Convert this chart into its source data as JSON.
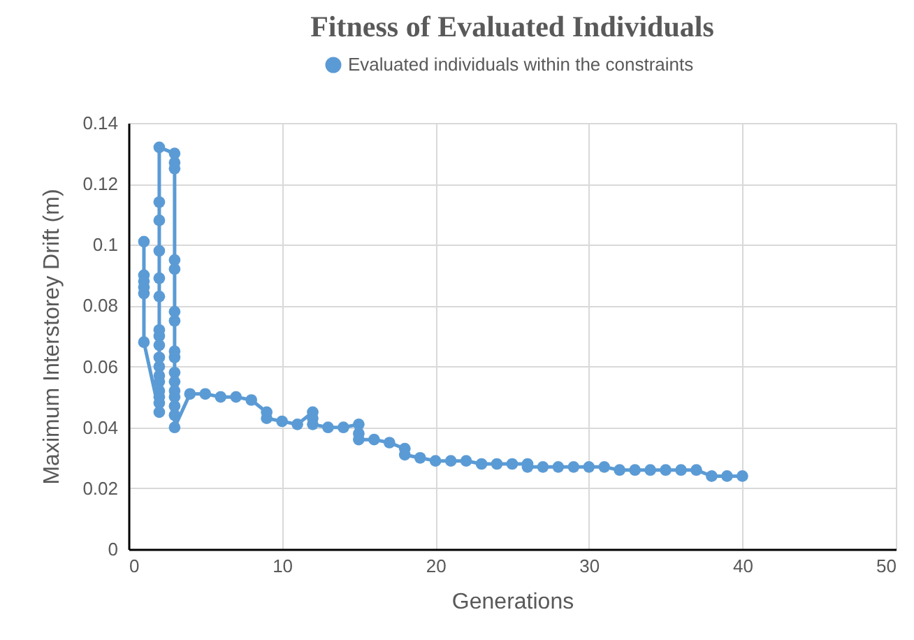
{
  "chart_data": {
    "type": "line",
    "title": "Fitness of Evaluated Individuals",
    "xlabel": "Generations",
    "ylabel": "Maximum Interstorey Drift (m)",
    "x": [
      1,
      1,
      1,
      1,
      1,
      1,
      2,
      2,
      2,
      2,
      2,
      2,
      2,
      2,
      2,
      2,
      2,
      2,
      2,
      2,
      2,
      2,
      2,
      3,
      3,
      3,
      3,
      3,
      3,
      3,
      3,
      3,
      3,
      3,
      3,
      3,
      3,
      3,
      3,
      4,
      5,
      6,
      7,
      8,
      9,
      9,
      10,
      11,
      12,
      12,
      12,
      13,
      14,
      15,
      15,
      15,
      16,
      17,
      18,
      18,
      19,
      20,
      21,
      22,
      23,
      24,
      25,
      26,
      26,
      27,
      28,
      29,
      30,
      31,
      32,
      33,
      34,
      35,
      36,
      37,
      38,
      39,
      40
    ],
    "series": [
      {
        "name": "Evaluated individuals within the constraints",
        "color": "#5b9bd5",
        "values": [
          0.101,
          0.09,
          0.088,
          0.086,
          0.084,
          0.068,
          0.045,
          0.048,
          0.05,
          0.052,
          0.055,
          0.057,
          0.06,
          0.063,
          0.067,
          0.07,
          0.072,
          0.083,
          0.089,
          0.098,
          0.108,
          0.114,
          0.132,
          0.13,
          0.127,
          0.125,
          0.095,
          0.092,
          0.078,
          0.075,
          0.065,
          0.063,
          0.058,
          0.055,
          0.052,
          0.05,
          0.047,
          0.044,
          0.04,
          0.051,
          0.051,
          0.05,
          0.05,
          0.049,
          0.045,
          0.043,
          0.042,
          0.041,
          0.045,
          0.043,
          0.041,
          0.04,
          0.04,
          0.041,
          0.038,
          0.036,
          0.036,
          0.035,
          0.033,
          0.031,
          0.03,
          0.029,
          0.029,
          0.029,
          0.028,
          0.028,
          0.028,
          0.028,
          0.027,
          0.027,
          0.027,
          0.027,
          0.027,
          0.027,
          0.026,
          0.026,
          0.026,
          0.026,
          0.026,
          0.026,
          0.024,
          0.024,
          0.024
        ]
      }
    ],
    "xlim": [
      0,
      50
    ],
    "xticks": [
      0,
      10,
      20,
      30,
      40,
      50
    ],
    "ylim": [
      0,
      0.14
    ],
    "yticks": [
      0,
      0.02,
      0.04,
      0.06,
      0.08,
      0.1,
      0.12,
      0.14
    ],
    "grid": true,
    "legend": "top",
    "marker": "circle",
    "line_style": "solid"
  }
}
